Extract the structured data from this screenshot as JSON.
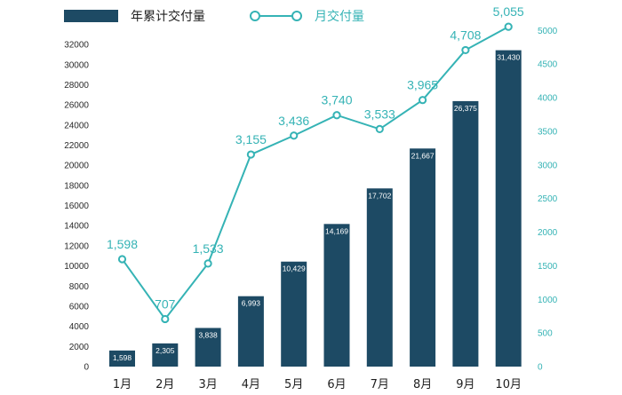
{
  "chart_data": {
    "type": "bar+line",
    "categories": [
      "1月",
      "2月",
      "3月",
      "4月",
      "5月",
      "6月",
      "7月",
      "8月",
      "9月",
      "10月"
    ],
    "series": [
      {
        "name": "年累计交付量",
        "type": "bar",
        "axis": "left",
        "values": [
          1598,
          2305,
          3838,
          6993,
          10429,
          14169,
          17702,
          21667,
          26375,
          31430
        ],
        "labels": [
          "1,598",
          "2,305",
          "3,838",
          "6,993",
          "10,429",
          "14,169",
          "17,702",
          "21,667",
          "26,375",
          "31,430"
        ]
      },
      {
        "name": "月交付量",
        "type": "line",
        "axis": "right",
        "values": [
          1598,
          707,
          1533,
          3155,
          3436,
          3740,
          3533,
          3965,
          4708,
          5055
        ],
        "labels": [
          "1,598",
          "707",
          "1,533",
          "3,155",
          "3,436",
          "3,740",
          "3,533",
          "3,965",
          "4,708",
          "5,055"
        ]
      }
    ],
    "y_left": {
      "range": [
        0,
        33000
      ],
      "ticks": [
        0,
        2000,
        4000,
        6000,
        8000,
        10000,
        12000,
        14000,
        16000,
        18000,
        20000,
        22000,
        24000,
        26000,
        28000,
        30000,
        32000
      ]
    },
    "y_right": {
      "range": [
        0,
        5000
      ],
      "ticks": [
        0,
        500,
        1000,
        1500,
        2000,
        2500,
        3000,
        3500,
        4000,
        4500,
        5000
      ]
    },
    "legend_position": "top-left",
    "grid": false,
    "colors": {
      "bar": "#1d4a64",
      "line": "#35b3b5",
      "axis_text": "#2a2a2a",
      "bar_label": "#ffffff"
    }
  }
}
